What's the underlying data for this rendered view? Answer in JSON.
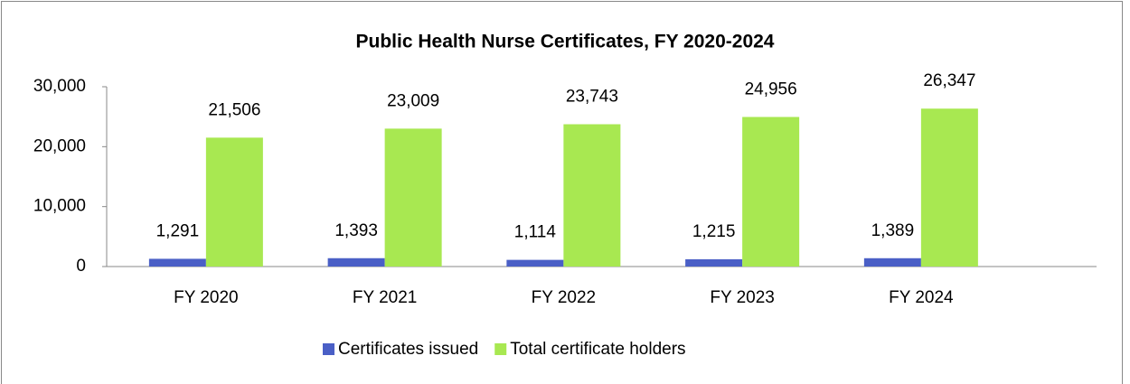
{
  "chart_data": {
    "type": "bar",
    "title": "Public Health Nurse Certificates, FY 2020-2024",
    "categories": [
      "FY 2020",
      "FY 2021",
      "FY 2022",
      "FY 2023",
      "FY 2024"
    ],
    "series": [
      {
        "name": "Certificates issued",
        "color": "#4a5fc6",
        "values": [
          1291,
          1393,
          1114,
          1215,
          1389
        ],
        "value_labels": [
          "1,291",
          "1,393",
          "1,114",
          "1,215",
          "1,389"
        ]
      },
      {
        "name": "Total certificate holders",
        "color": "#a8e851",
        "values": [
          21506,
          23009,
          23743,
          24956,
          26347
        ],
        "value_labels": [
          "21,506",
          "23,009",
          "23,743",
          "24,956",
          "26,347"
        ]
      }
    ],
    "ylim": [
      0,
      30000
    ],
    "yticks": [
      0,
      {
        "value": 10000,
        "label": "10,000"
      },
      {
        "value": 20000,
        "label": "20,000"
      },
      {
        "value": 30000,
        "label": "30,000"
      }
    ],
    "grid": false,
    "legend": "bottom"
  }
}
